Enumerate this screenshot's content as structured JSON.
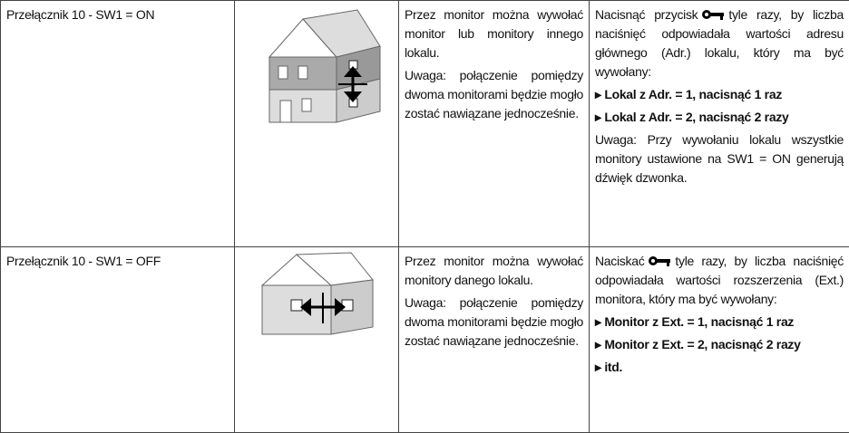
{
  "table": {
    "rows": [
      {
        "setting": "Przełącznik 10 - SW1 = ON",
        "description": [
          "Przez monitor można wywołać monitor lub monitory innego lokalu.",
          "Uwaga: połączenie pomiędzy dwoma monitorami będzie mogło zostać nawiązane jednocześnie."
        ],
        "instructions": {
          "before_icon": "Nacisnąć przycisk",
          "after_icon": "tyle razy, by liczba naciśnięć odpowiadała wartości adresu głównego (Adr.) lokalu, który ma być wywołany:",
          "items": [
            "▸ Lokal z Adr. = 1, nacisnąć 1 raz",
            "▸ Lokal z Adr. = 2, nacisnąć 2 razy"
          ],
          "note": "Uwaga: Przy wywołaniu lokalu wszystkie monitory ustawione na SW1 = ON generują dźwięk dzwonka."
        }
      },
      {
        "setting": "Przełącznik 10 - SW1 = OFF",
        "description": [
          "Przez monitor można wywołać monitory danego lokalu.",
          "Uwaga: połączenie pomiędzy dwoma monitorami będzie mogło zostać nawiązane jednocześnie."
        ],
        "instructions": {
          "before_icon": "Naciskać",
          "after_icon": "tyle razy, by liczba naciśnięć odpowiadała wartości rozszerzenia (Ext.) monitora, który ma być wywołany:",
          "items": [
            "▸ Monitor z Ext. = 1, nacisnąć 1 raz",
            "▸ Monitor z Ext. = 2, nacisnąć 2 razy",
            "▸ itd."
          ]
        }
      }
    ]
  }
}
